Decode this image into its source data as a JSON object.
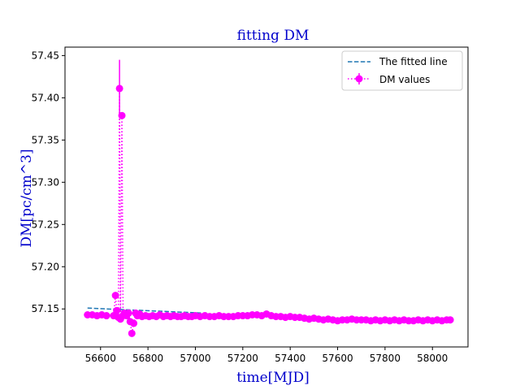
{
  "chart_data": {
    "type": "scatter",
    "title": "fitting DM",
    "xlabel": "time[MJD]",
    "ylabel": "DM[pc/cm^3]",
    "xlim": [
      56450,
      58150
    ],
    "ylim": [
      57.105,
      57.46
    ],
    "xticks": [
      "56600",
      "56800",
      "57000",
      "57200",
      "57400",
      "57600",
      "57800",
      "58000"
    ],
    "xtick_values": [
      56600,
      56800,
      57000,
      57200,
      57400,
      57600,
      57800,
      58000
    ],
    "yticks": [
      "57.15",
      "57.20",
      "57.25",
      "57.30",
      "57.35",
      "57.40",
      "57.45"
    ],
    "ytick_values": [
      57.15,
      57.2,
      57.25,
      57.3,
      57.35,
      57.4,
      57.45
    ],
    "grid": false,
    "legend_position": "top-right",
    "label_color": "#0000cc",
    "series": [
      {
        "name": "The fitted line",
        "kind": "line",
        "style": "dashed",
        "color": "#1f77b4",
        "x": [
          56545,
          57040
        ],
        "y": [
          57.151,
          57.145
        ]
      },
      {
        "name": "DM values",
        "kind": "errorbar",
        "style": "dotted",
        "color": "#ff00ff",
        "x": [
          56545,
          56565,
          56585,
          56605,
          56625,
          56655,
          56663,
          56668,
          56675,
          56680,
          56684,
          56690,
          56695,
          56700,
          56710,
          56718,
          56725,
          56732,
          56740,
          56748,
          56755,
          56765,
          56775,
          56790,
          56805,
          56820,
          56835,
          56850,
          56865,
          56880,
          56895,
          56910,
          56925,
          56940,
          56955,
          56970,
          56985,
          57000,
          57020,
          57040,
          57060,
          57080,
          57100,
          57120,
          57140,
          57160,
          57180,
          57200,
          57220,
          57240,
          57260,
          57280,
          57300,
          57320,
          57340,
          57360,
          57380,
          57400,
          57420,
          57440,
          57460,
          57480,
          57500,
          57520,
          57540,
          57560,
          57580,
          57600,
          57620,
          57640,
          57660,
          57680,
          57700,
          57720,
          57740,
          57760,
          57780,
          57800,
          57820,
          57840,
          57860,
          57880,
          57900,
          57920,
          57940,
          57960,
          57980,
          58000,
          58020,
          58040,
          58060,
          58075
        ],
        "y": [
          57.143,
          57.143,
          57.142,
          57.143,
          57.142,
          57.142,
          57.166,
          57.148,
          57.14,
          57.411,
          57.138,
          57.379,
          57.142,
          57.145,
          57.142,
          57.145,
          57.135,
          57.121,
          57.133,
          57.145,
          57.142,
          57.144,
          57.141,
          57.142,
          57.141,
          57.142,
          57.141,
          57.143,
          57.141,
          57.142,
          57.141,
          57.142,
          57.141,
          57.141,
          57.142,
          57.141,
          57.141,
          57.142,
          57.141,
          57.142,
          57.141,
          57.141,
          57.142,
          57.141,
          57.141,
          57.141,
          57.142,
          57.142,
          57.142,
          57.143,
          57.143,
          57.142,
          57.144,
          57.142,
          57.141,
          57.141,
          57.14,
          57.141,
          57.14,
          57.14,
          57.139,
          57.138,
          57.139,
          57.138,
          57.137,
          57.138,
          57.137,
          57.136,
          57.137,
          57.137,
          57.138,
          57.137,
          57.137,
          57.137,
          57.136,
          57.137,
          57.136,
          57.137,
          57.136,
          57.137,
          57.136,
          57.137,
          57.136,
          57.136,
          57.137,
          57.136,
          57.137,
          57.136,
          57.137,
          57.136,
          57.137,
          57.137
        ],
        "yerr": [
          0.002,
          0.002,
          0.002,
          0.002,
          0.002,
          0.002,
          0.004,
          0.003,
          0.002,
          0.034,
          0.002,
          0.004,
          0.004,
          0.004,
          0.002,
          0.002,
          0.003,
          0.003,
          0.004,
          0.004,
          0.002,
          0.002,
          0.002,
          0.002,
          0.002,
          0.002,
          0.002,
          0.002,
          0.002,
          0.002,
          0.002,
          0.002,
          0.002,
          0.002,
          0.002,
          0.002,
          0.002,
          0.002,
          0.002,
          0.002,
          0.002,
          0.002,
          0.002,
          0.002,
          0.002,
          0.002,
          0.002,
          0.002,
          0.002,
          0.002,
          0.002,
          0.002,
          0.002,
          0.002,
          0.002,
          0.002,
          0.002,
          0.002,
          0.002,
          0.002,
          0.002,
          0.002,
          0.002,
          0.002,
          0.002,
          0.002,
          0.002,
          0.002,
          0.002,
          0.002,
          0.002,
          0.002,
          0.002,
          0.002,
          0.002,
          0.002,
          0.002,
          0.002,
          0.002,
          0.002,
          0.002,
          0.002,
          0.002,
          0.002,
          0.002,
          0.002,
          0.002,
          0.002,
          0.002,
          0.002,
          0.002,
          0.002
        ]
      }
    ]
  }
}
